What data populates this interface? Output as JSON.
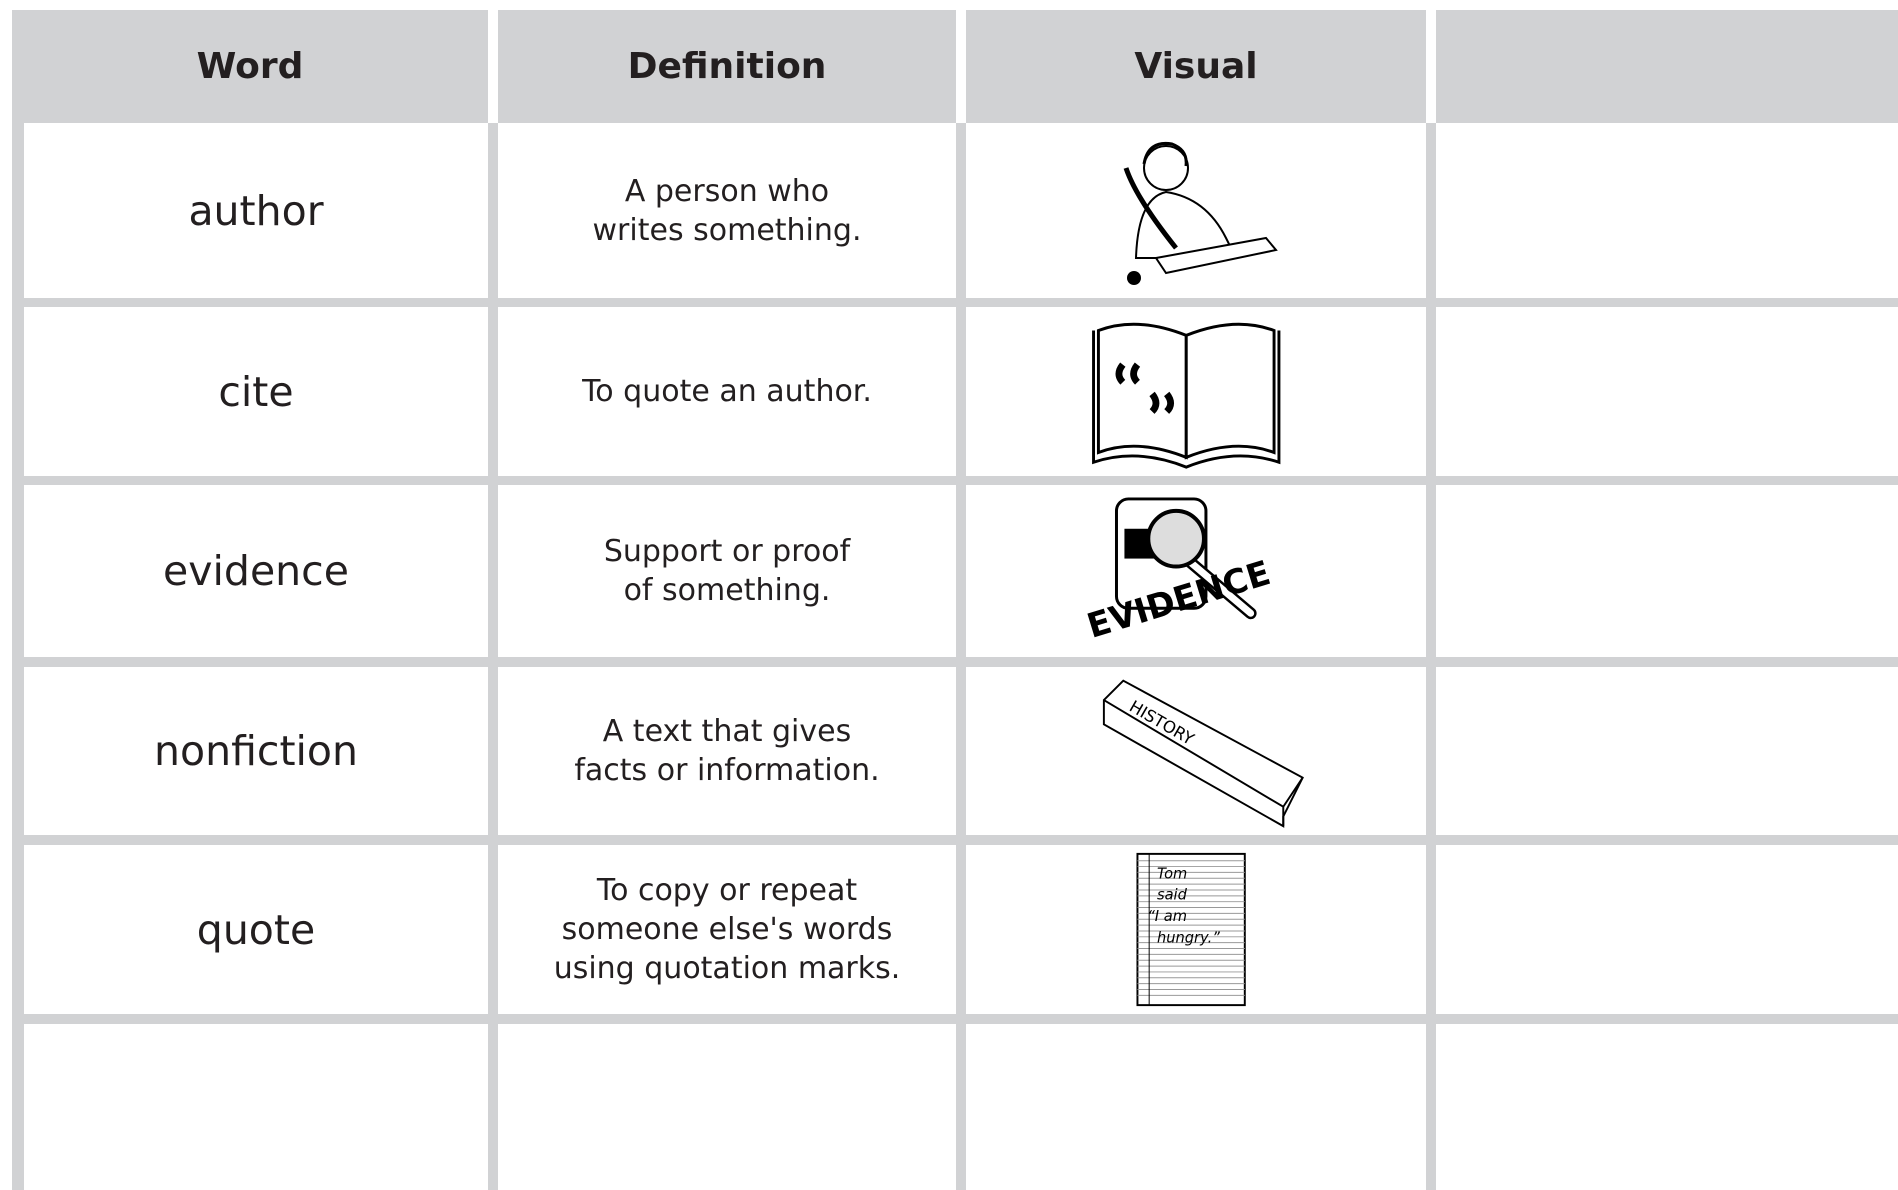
{
  "table": {
    "headers": [
      "Word",
      "Definition",
      "Visual"
    ],
    "rows": [
      {
        "word": "author",
        "definition": [
          "A person who",
          "writes something."
        ]
      },
      {
        "word": "cite",
        "definition": [
          "To quote an author."
        ]
      },
      {
        "word": "evidence",
        "definition": [
          "Support or proof",
          "of something."
        ],
        "visual_text": "EVIDENCE"
      },
      {
        "word": "nonfiction",
        "definition": [
          "A text that gives",
          "facts or information."
        ],
        "visual_text": "HISTORY"
      },
      {
        "word": "quote",
        "definition": [
          "To copy or repeat",
          "someone else's words",
          "using quotation marks."
        ],
        "visual_text": [
          "Tom",
          "said",
          "“I am",
          "hungry.”"
        ]
      }
    ]
  }
}
